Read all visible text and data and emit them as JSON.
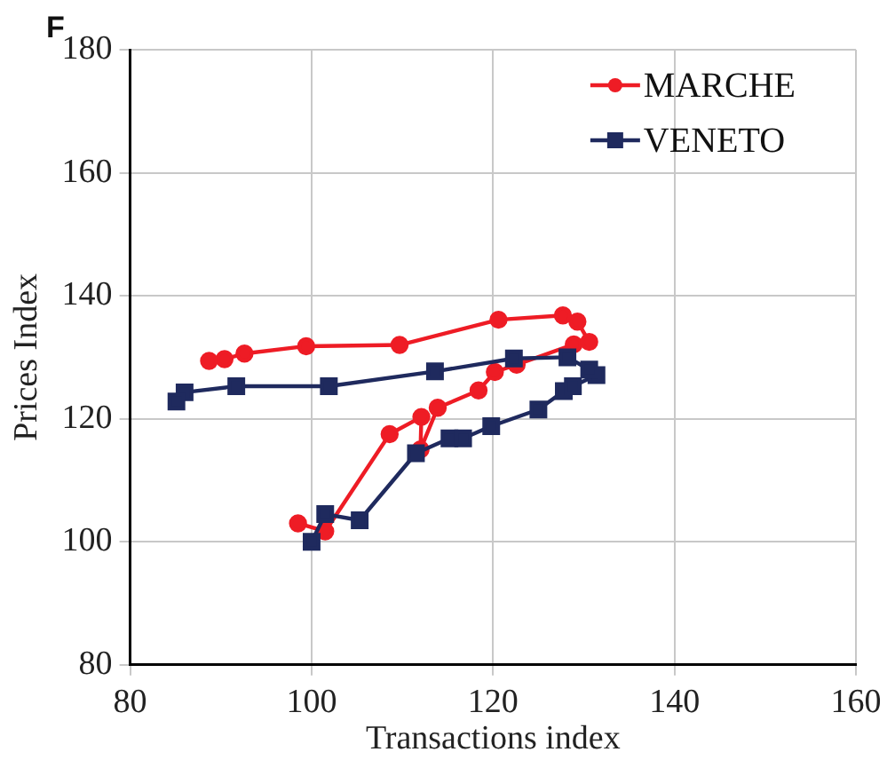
{
  "chart_data": {
    "type": "line",
    "title": "F",
    "xlabel": "Transactions index",
    "ylabel": "Prices Index",
    "xlim": [
      80,
      160
    ],
    "xticks": [
      80,
      100,
      120,
      140,
      160
    ],
    "ylim": [
      80,
      180
    ],
    "yticks": [
      80,
      100,
      120,
      140,
      160,
      180
    ],
    "grid": true,
    "legend": "top right",
    "line_style": "solid",
    "series": [
      {
        "name": "MARCHE",
        "color": "#ee1c25",
        "marker": "circle",
        "x": [
          98.5,
          101.5,
          108.6,
          112.1,
          112,
          113.9,
          118.4,
          120.2,
          122.6,
          128.9,
          130.6,
          129.3,
          127.7,
          120.6,
          109.7,
          99.4,
          92.6,
          90.4,
          88.7
        ],
        "values": [
          103,
          101.7,
          117.5,
          120.3,
          115,
          121.8,
          124.6,
          127.6,
          128.8,
          132.1,
          132.5,
          135.8,
          136.8,
          136.1,
          132,
          131.8,
          130.6,
          129.7,
          129.4
        ]
      },
      {
        "name": "VENETO",
        "color": "#1f2a5e",
        "marker": "square",
        "x": [
          100,
          101.5,
          105.3,
          111.5,
          115.2,
          116.7,
          119.8,
          125,
          127.8,
          128.8,
          131.4,
          130.6,
          128.2,
          122.3,
          113.6,
          101.9,
          91.7,
          86,
          85.1
        ],
        "values": [
          100,
          104.5,
          103.5,
          114.4,
          116.8,
          116.8,
          118.8,
          121.5,
          124.5,
          125.3,
          127.1,
          128,
          130,
          129.8,
          127.7,
          125.3,
          125.3,
          124.3,
          122.8
        ]
      }
    ]
  }
}
